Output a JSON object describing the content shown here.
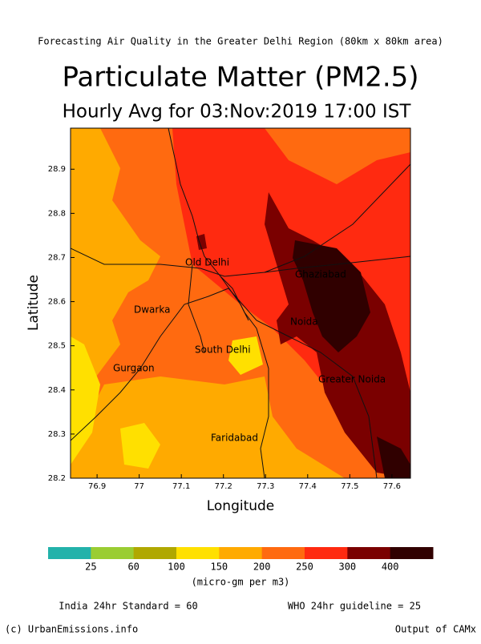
{
  "header": {
    "subtitle": "Forecasting Air Quality in the Greater Delhi Region (80km x 80km area)",
    "title": "Particulate Matter (PM2.5)",
    "time": "Hourly Avg for 03:Nov:2019 17:00 IST"
  },
  "map": {
    "x_label": "Longitude",
    "y_label": "Latitude",
    "xlim": [
      76.837,
      77.644
    ],
    "ylim": [
      28.2,
      28.993
    ],
    "xticks": [
      76.9,
      77,
      77.1,
      77.2,
      77.3,
      77.4,
      77.5,
      77.6
    ],
    "yticks": [
      28.2,
      28.3,
      28.4,
      28.5,
      28.6,
      28.7,
      28.8,
      28.9
    ],
    "places": [
      "Old Delhi",
      "Ghaziabad",
      "Dwarka",
      "Noida",
      "South Delhi",
      "Gurgaon",
      "Greater Noida",
      "Faridabad"
    ]
  },
  "colorbar": {
    "colors": [
      "#22b2aa",
      "#9acd32",
      "#b0a800",
      "#ffe000",
      "#ffaa00",
      "#ff6a10",
      "#ff2a10",
      "#7a0000",
      "#300000"
    ],
    "ticks": [
      25,
      60,
      100,
      150,
      200,
      250,
      300,
      400
    ],
    "unit": "(micro-gm per m3)"
  },
  "footer": {
    "india": "India 24hr Standard = 60",
    "who": "WHO 24hr guideline = 25",
    "credit": "(c) UrbanEmissions.info",
    "output": "Output of CAMx"
  }
}
